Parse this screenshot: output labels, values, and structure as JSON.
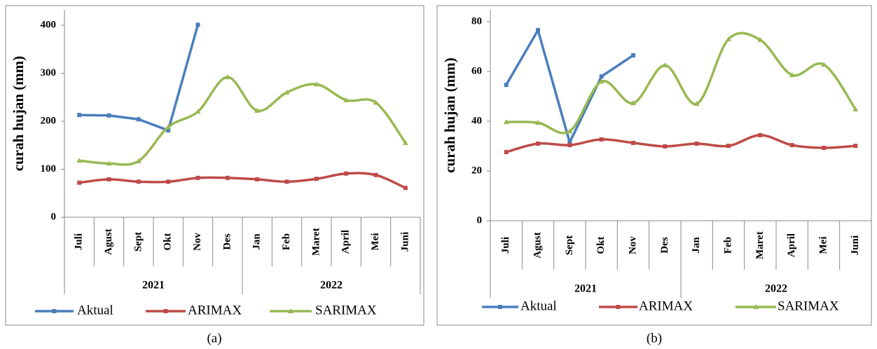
{
  "chart_data": [
    {
      "type": "line",
      "y_label": "curah hujan (mm)",
      "caption": "(a)",
      "categories": [
        "Juli",
        "Agust",
        "Sept",
        "Okt",
        "Nov",
        "Des",
        "Jan",
        "Feb",
        "Maret",
        "April",
        "Mei",
        "Juni"
      ],
      "groups": [
        "2021",
        "2022"
      ],
      "ylim": [
        0,
        400
      ],
      "yticks": [
        0,
        100,
        200,
        300,
        400
      ],
      "series": [
        {
          "name": "Aktual",
          "color": "#4a7ebb",
          "marker": "square",
          "smooth": false,
          "values": [
            213,
            212,
            204,
            181,
            401,
            null,
            null,
            null,
            null,
            null,
            null,
            null
          ]
        },
        {
          "name": "ARIMAX",
          "color": "#be4b48",
          "marker": "square",
          "smooth": true,
          "values": [
            72,
            79,
            74,
            74,
            82,
            82,
            79,
            74,
            80,
            91,
            88,
            61
          ]
        },
        {
          "name": "SARIMAX",
          "color": "#98b954",
          "marker": "triangle",
          "smooth": true,
          "values": [
            118,
            112,
            117,
            188,
            220,
            292,
            222,
            260,
            277,
            244,
            239,
            155
          ]
        }
      ]
    },
    {
      "type": "line",
      "y_label": "curah hujan (mm)",
      "caption": "(b)",
      "categories": [
        "Juli",
        "Agust",
        "Sept",
        "Okt",
        "Nov",
        "Des",
        "Jan",
        "Feb",
        "Maret",
        "April",
        "Mei",
        "Juni"
      ],
      "groups": [
        "2021",
        "2022"
      ],
      "ylim": [
        0,
        80
      ],
      "yticks": [
        0,
        20,
        40,
        60,
        80
      ],
      "series": [
        {
          "name": "Aktual",
          "color": "#4a7ebb",
          "marker": "square",
          "smooth": false,
          "values": [
            54.6,
            76.6,
            31.5,
            58,
            66.5,
            null,
            null,
            null,
            null,
            null,
            null,
            null
          ]
        },
        {
          "name": "ARIMAX",
          "color": "#be4b48",
          "marker": "square",
          "smooth": true,
          "values": [
            27.6,
            31,
            30.4,
            32.7,
            31.3,
            29.9,
            31,
            30.1,
            34.4,
            30.4,
            29.3,
            30.1
          ]
        },
        {
          "name": "SARIMAX",
          "color": "#98b954",
          "marker": "triangle",
          "smooth": true,
          "values": [
            39.7,
            39.4,
            36,
            56,
            47.3,
            62.5,
            47,
            73,
            72.7,
            58.6,
            62.8,
            44.8
          ]
        }
      ]
    }
  ]
}
